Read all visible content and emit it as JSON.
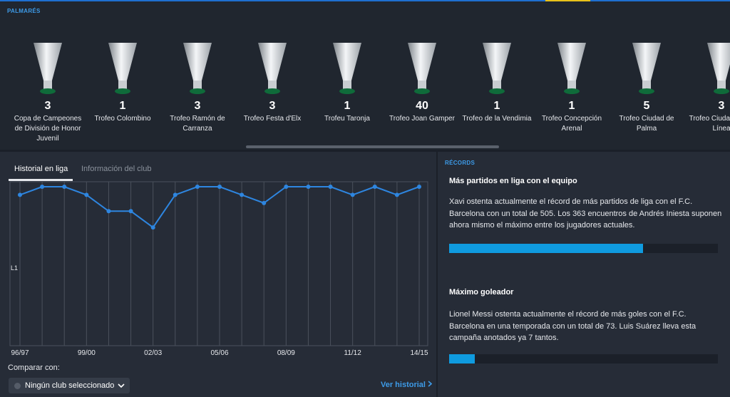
{
  "palmares": {
    "title": "PALMARÉS",
    "trophies": [
      {
        "count": "3",
        "name": "Copa de Campeones de División de Honor Juvenil"
      },
      {
        "count": "1",
        "name": "Trofeo Colombino"
      },
      {
        "count": "3",
        "name": "Trofeo Ramón de Carranza"
      },
      {
        "count": "3",
        "name": "Trofeo Festa d'Elx"
      },
      {
        "count": "1",
        "name": "Trofeu Taronja"
      },
      {
        "count": "40",
        "name": "Trofeo Joan Gamper"
      },
      {
        "count": "1",
        "name": "Trofeo de la Vendimia"
      },
      {
        "count": "1",
        "name": "Trofeo Concepción Arenal"
      },
      {
        "count": "5",
        "name": "Trofeo Ciudad de Palma"
      },
      {
        "count": "3",
        "name": "Trofeo Ciudad de La Línea"
      }
    ]
  },
  "tabs": [
    "Historial en liga",
    "Información del club"
  ],
  "history_chart": {
    "type": "line",
    "y_label": "L1",
    "categories": [
      "96/97",
      null,
      null,
      "99/00",
      null,
      null,
      "02/03",
      null,
      null,
      "05/06",
      null,
      null,
      "08/09",
      null,
      null,
      "11/12",
      null,
      null,
      "14/15"
    ],
    "values": [
      2,
      1,
      1,
      2,
      4,
      4,
      6,
      2,
      1,
      1,
      2,
      3,
      1,
      1,
      1,
      2,
      1,
      2,
      1
    ],
    "ylim": [
      20,
      1
    ],
    "color": "#2e86e0"
  },
  "compare": {
    "label": "Comparar con:",
    "dropdown": "Ningún club seleccionado",
    "link": "Ver historial"
  },
  "records": {
    "title": "RÉCORDS",
    "items": [
      {
        "heading": "Más partidos en liga con el equipo",
        "text": "Xavi ostenta actualmente el récord de más partidos de liga con el F.C. Barcelona con un total de 505. Los 363 encuentros de Andrés Iniesta suponen ahora mismo el máximo entre los jugadores actuales."
      },
      {
        "heading": "Máximo goleador",
        "text": "Lionel Messi ostenta actualmente el récord de más goles con el F.C. Barcelona en una temporada con un total de 73. Luis Suárez lleva esta campaña anotados ya 7 tantos."
      }
    ]
  }
}
